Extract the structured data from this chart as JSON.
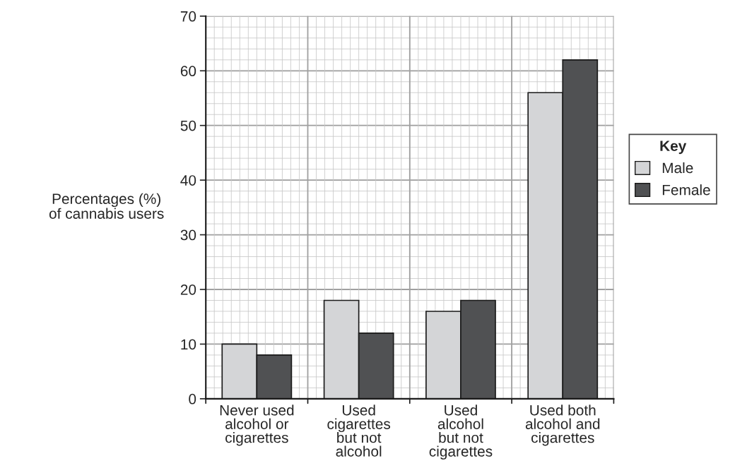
{
  "chart_data": {
    "type": "bar",
    "categories": [
      "Never used\nalcohol or\ncigarettes",
      "Used\ncigarettes\nbut not\nalcohol",
      "Used\nalcohol\nbut not\ncigarettes",
      "Used both\nalcohol and\ncigarettes"
    ],
    "series": [
      {
        "name": "Male",
        "color": "#d4d5d7",
        "values": [
          10,
          18,
          16,
          56
        ]
      },
      {
        "name": "Female",
        "color": "#505153",
        "values": [
          8,
          12,
          18,
          62
        ]
      }
    ],
    "ylabel": "Percentages (%)\nof cannabis users",
    "legend_title": "Key",
    "ylim": [
      0,
      70
    ],
    "yticks": [
      0,
      10,
      20,
      30,
      40,
      50,
      60,
      70
    ],
    "grid": true,
    "legend": "right"
  }
}
